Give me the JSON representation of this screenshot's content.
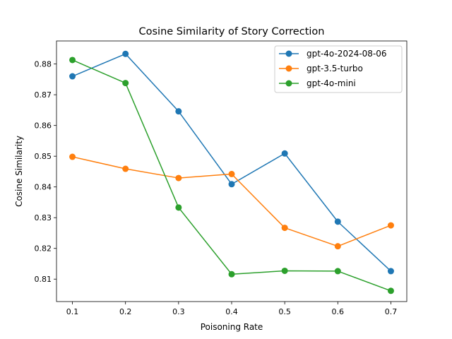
{
  "chart_data": {
    "type": "line",
    "title": "Cosine Similarity of Story Correction",
    "xlabel": "Poisoning Rate",
    "ylabel": "Cosine Similarity",
    "x": [
      0.1,
      0.2,
      0.3,
      0.4,
      0.5,
      0.6,
      0.7
    ],
    "xticks": [
      "0.1",
      "0.2",
      "0.3",
      "0.4",
      "0.5",
      "0.6",
      "0.7"
    ],
    "xlim": [
      0.07,
      0.73
    ],
    "yticks": [
      "0.81",
      "0.82",
      "0.83",
      "0.84",
      "0.85",
      "0.86",
      "0.87",
      "0.88"
    ],
    "ylim": [
      0.8027,
      0.8875
    ],
    "grid": false,
    "legend_position": "top-right",
    "series": [
      {
        "name": "gpt-4o-2024-08-06",
        "color": "#1f77b4",
        "values": [
          0.876,
          0.8833,
          0.8646,
          0.8409,
          0.8509,
          0.8287,
          0.8126
        ]
      },
      {
        "name": "gpt-3.5-turbo",
        "color": "#ff7f0e",
        "values": [
          0.8498,
          0.8459,
          0.8429,
          0.8442,
          0.8267,
          0.8207,
          0.8275
        ]
      },
      {
        "name": "gpt-4o-mini",
        "color": "#2ca02c",
        "values": [
          0.8813,
          0.8738,
          0.8333,
          0.8116,
          0.8127,
          0.8126,
          0.8062
        ]
      }
    ]
  }
}
